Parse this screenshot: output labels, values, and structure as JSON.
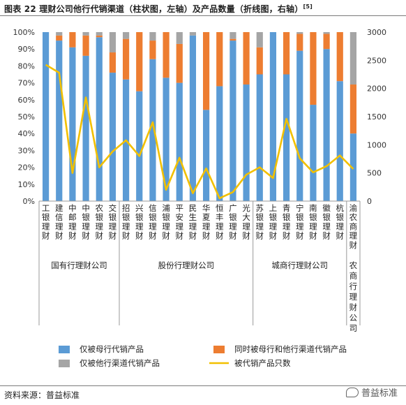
{
  "title": "图表 22  理财公司他行代销渠道（柱状图，左轴）及产品数量（折线图，右轴）",
  "title_sup": "[5]",
  "source": "资料来源：普益标准",
  "watermark": "普益标准",
  "chart_data": {
    "type": "bar",
    "stacked": true,
    "categories": [
      "工银理财",
      "建信理财",
      "中邮理财",
      "中银理财",
      "农银理财",
      "交银理财",
      "招银理财",
      "兴银理财",
      "信银理财",
      "浦银理财",
      "平安理财",
      "民生理财",
      "华夏理财",
      "恒丰理财",
      "广银理财",
      "光大理财",
      "苏银理财",
      "上银理财",
      "青银理财",
      "宁银理财",
      "南银理财",
      "徽银理财",
      "杭银理财",
      "渝农商理财"
    ],
    "groups": [
      {
        "label": "国有行理财公司",
        "start": 0,
        "end": 5
      },
      {
        "label": "股份行理财公司",
        "start": 6,
        "end": 15
      },
      {
        "label": "城商行理财公司",
        "start": 16,
        "end": 22
      },
      {
        "label": "农商行理财公司",
        "start": 23,
        "end": 23
      }
    ],
    "series": [
      {
        "name": "仅被母行代销产品",
        "color": "#5B9BD5",
        "axis": "left",
        "values": [
          100,
          95,
          91,
          86,
          97,
          76,
          72,
          65,
          84,
          73,
          70,
          98,
          54,
          68,
          95,
          69,
          75,
          100,
          75,
          89,
          57,
          90,
          71,
          40
        ]
      },
      {
        "name": "同时被母行和他行渠道代销产品",
        "color": "#ED7D31",
        "axis": "left",
        "values": [
          0,
          3,
          9,
          12,
          1,
          12,
          24,
          35,
          11,
          27,
          23,
          0,
          46,
          32,
          1,
          31,
          16,
          0,
          25,
          10,
          43,
          9,
          29,
          29
        ]
      },
      {
        "name": "仅被他行渠道代销产品",
        "color": "#A5A5A5",
        "axis": "left",
        "values": [
          0,
          2,
          0,
          2,
          2,
          12,
          4,
          0,
          5,
          0,
          7,
          2,
          0,
          0,
          4,
          0,
          9,
          0,
          0,
          1,
          0,
          1,
          0,
          31
        ]
      },
      {
        "name": "被代销产品只数",
        "color": "#F2C000",
        "axis": "right",
        "type": "line",
        "values": [
          2420,
          2280,
          500,
          1840,
          600,
          880,
          1080,
          800,
          1400,
          200,
          770,
          140,
          580,
          50,
          160,
          470,
          600,
          410,
          1460,
          760,
          510,
          620,
          810,
          570
        ]
      }
    ],
    "y_left": {
      "min": 0,
      "max": 100,
      "unit": "%",
      "ticks": [
        "0%",
        "10%",
        "20%",
        "30%",
        "40%",
        "50%",
        "60%",
        "70%",
        "80%",
        "90%",
        "100%"
      ]
    },
    "y_right": {
      "min": 0,
      "max": 3000,
      "ticks": [
        "0",
        "500",
        "1000",
        "1500",
        "2000",
        "2500",
        "3000"
      ]
    },
    "legend": {
      "placement": "bottom"
    }
  }
}
